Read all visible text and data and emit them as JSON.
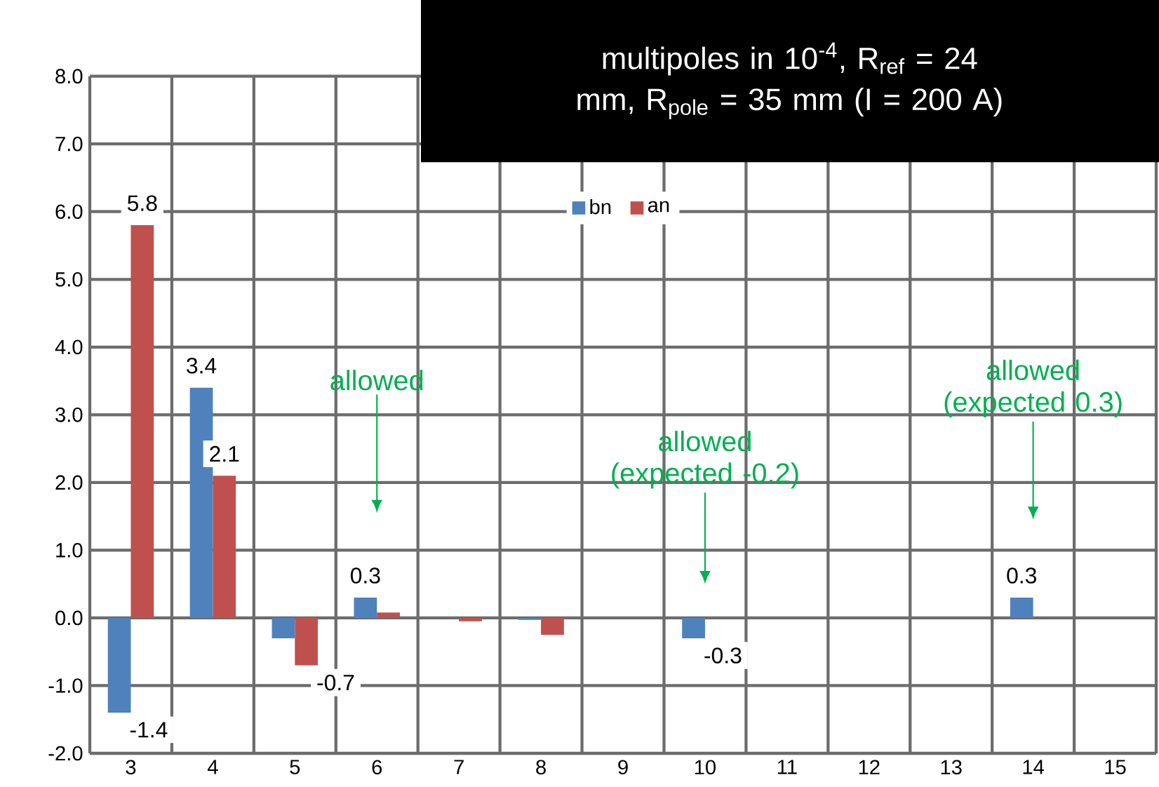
{
  "chart_data": {
    "type": "bar",
    "title": "multipoles in 10$^{-4}$, R$_{ref}$ = 24 mm, R$_{pole}$ = 35 mm (I = 200 A)",
    "categories": [
      "3",
      "4",
      "5",
      "6",
      "7",
      "8",
      "9",
      "10",
      "11",
      "12",
      "13",
      "14",
      "15"
    ],
    "series": [
      {
        "name": "bn",
        "color": "#4f81bd",
        "values": [
          -1.4,
          3.4,
          -0.3,
          0.3,
          0,
          -0.03,
          0,
          -0.3,
          0,
          0,
          0,
          0.3,
          0
        ],
        "value_labels": [
          "-1.4",
          "3.4",
          null,
          "0.3",
          null,
          null,
          null,
          "-0.3",
          null,
          null,
          null,
          "0.3",
          null
        ]
      },
      {
        "name": "an",
        "color": "#c0504d",
        "values": [
          5.8,
          2.1,
          -0.7,
          0.08,
          -0.05,
          -0.25,
          0,
          0,
          0,
          0,
          0,
          0,
          0
        ],
        "value_labels": [
          "5.8",
          "2.1",
          "-0.7",
          null,
          null,
          null,
          null,
          null,
          null,
          null,
          null,
          null,
          null
        ]
      }
    ],
    "ylim": [
      -2,
      8
    ],
    "yticks": [
      {
        "value": -2,
        "label": "-2.0"
      },
      {
        "value": -1,
        "label": "-1.0"
      },
      {
        "value": 0,
        "label": "0.0"
      },
      {
        "value": 1,
        "label": "1.0"
      },
      {
        "value": 2,
        "label": "2.0"
      },
      {
        "value": 3,
        "label": "3.0"
      },
      {
        "value": 4,
        "label": "4.0"
      },
      {
        "value": 5,
        "label": "5.0"
      },
      {
        "value": 6,
        "label": "6.0"
      },
      {
        "value": 7,
        "label": "7.0"
      },
      {
        "value": 8,
        "label": "8.0"
      }
    ],
    "grid": true,
    "legend": "top",
    "annotations": [
      "allowed",
      "allowed (expected -0.2)",
      "allowed (expected 0.3)"
    ]
  }
}
